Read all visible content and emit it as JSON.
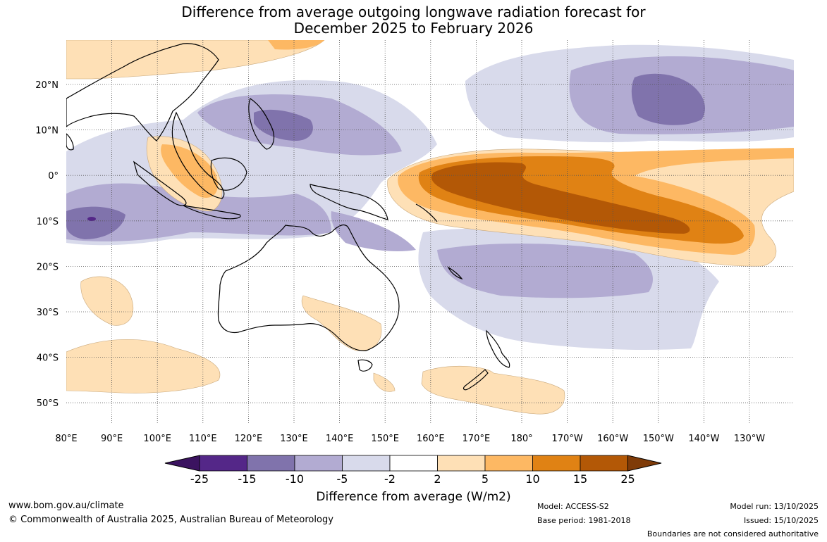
{
  "title_line1": "Difference from average outgoing longwave radiation forecast for",
  "title_line2": "December 2025 to February 2026",
  "lon_labels": [
    "80°E",
    "90°E",
    "100°E",
    "110°E",
    "120°E",
    "130°E",
    "140°E",
    "150°E",
    "160°E",
    "170°E",
    "180°",
    "170°W",
    "160°W",
    "150°W",
    "140°W",
    "130°W"
  ],
  "lat_labels": [
    "20°N",
    "10°N",
    "0°",
    "10°S",
    "20°S",
    "30°S",
    "40°S",
    "50°S"
  ],
  "colorbar": {
    "labels": [
      "-25",
      "-15",
      "-10",
      "-5",
      "-2",
      "2",
      "5",
      "10",
      "15",
      "25"
    ],
    "colors": [
      "#3b1360",
      "#542788",
      "#8073ac",
      "#b2abd2",
      "#d8daeb",
      "#ffffff",
      "#fee0b6",
      "#fdb863",
      "#e08214",
      "#b35806",
      "#7f3b08"
    ],
    "title": "Difference from average (W/m2)"
  },
  "footer": {
    "website": "www.bom.gov.au/climate",
    "copyright": "© Commonwealth of Australia 2025, Australian Bureau of Meteorology",
    "model": "Model: ACCESS-S2",
    "base_period": "Base period: 1981-2018",
    "model_run": "Model run: 13/10/2025",
    "issued": "Issued: 15/10/2025",
    "disclaimer": "Boundaries are not considered authoritative"
  }
}
